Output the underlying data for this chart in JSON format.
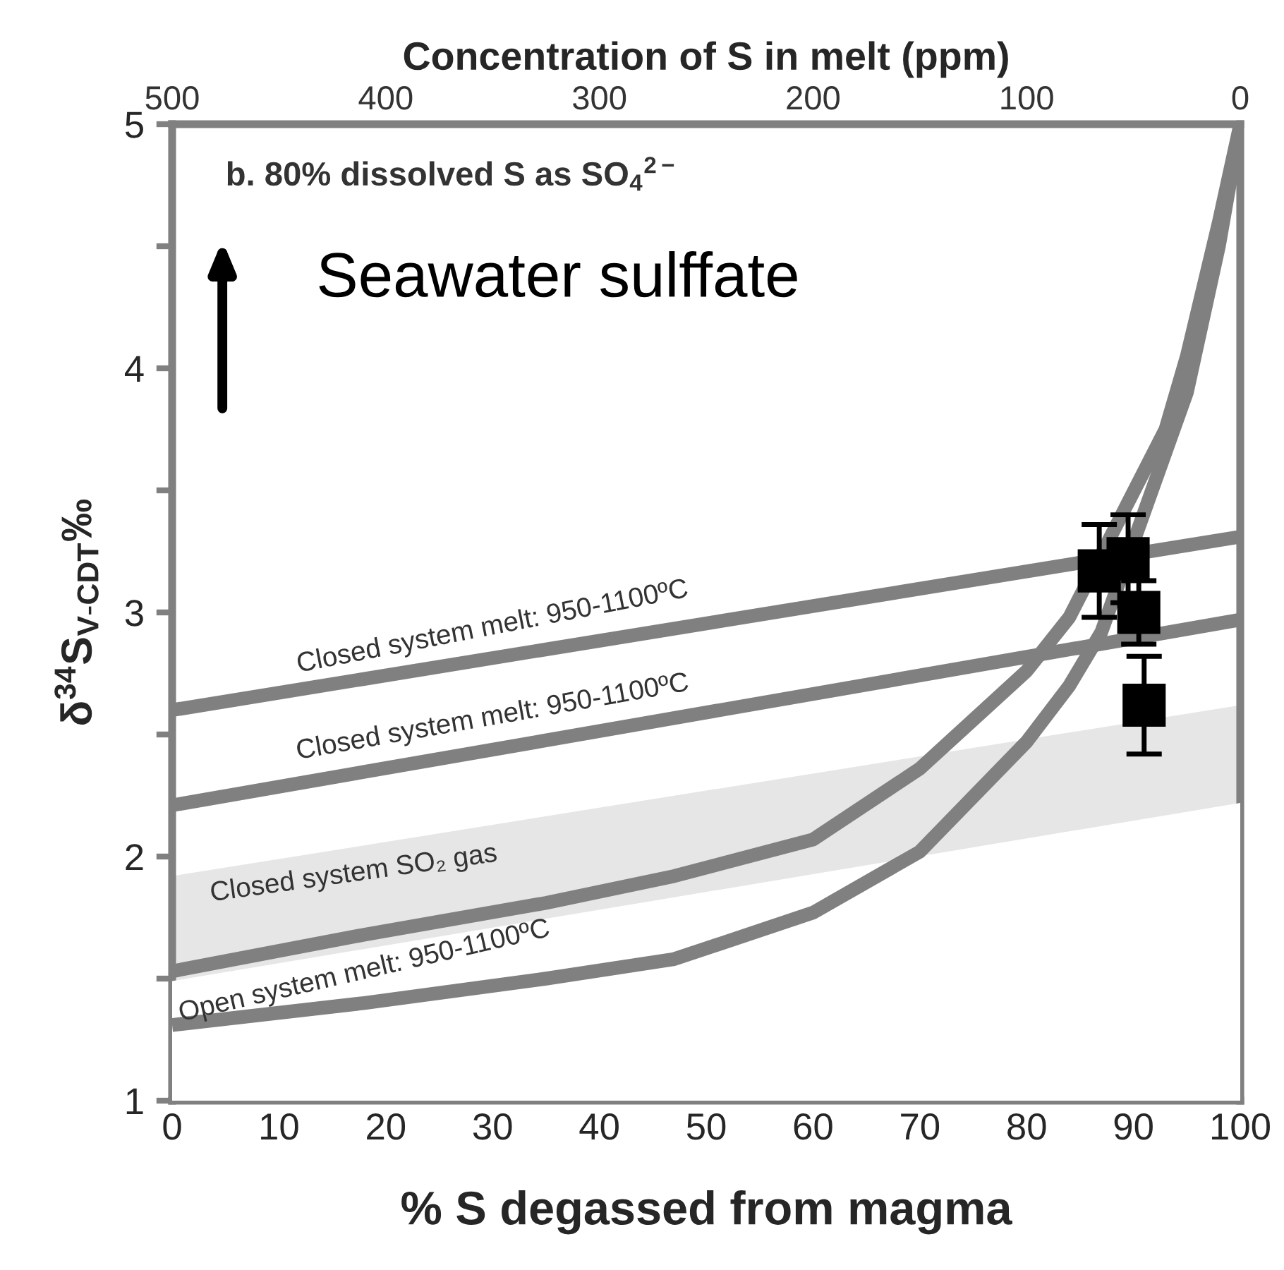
{
  "chart_data": {
    "type": "line",
    "xlabel": "% S degassed from magma",
    "x2label": "Concentration of S in melt (ppm)",
    "ylabel": "δ$^{34}$S$_{V-CDT}$‰",
    "xlim": [
      0,
      100
    ],
    "xticks": [
      0,
      10,
      20,
      30,
      40,
      50,
      60,
      70,
      80,
      90,
      100
    ],
    "x2lim": [
      500,
      0
    ],
    "x2ticks": [
      500,
      400,
      300,
      200,
      100,
      0
    ],
    "ylim": [
      1,
      5
    ],
    "yticks": [
      1,
      {
        "value": 1.5,
        "label": null
      },
      2,
      {
        "value": 2.5,
        "label": null
      },
      3,
      {
        "value": 3.5,
        "label": null
      },
      4,
      {
        "value": 4.5,
        "label": null
      },
      5
    ],
    "grid": false,
    "legend": false,
    "series": [
      {
        "type": "area",
        "color": "#e6e6e6",
        "x": [
          0,
          100
        ],
        "values": [
          1.92,
          2.62
        ]
      },
      {
        "type": "area",
        "color": "#ffffff",
        "x": [
          0,
          100
        ],
        "values": [
          1.49,
          2.22
        ]
      },
      {
        "color": "#808080",
        "x": [
          0,
          100
        ],
        "values": [
          2.6,
          3.31
        ]
      },
      {
        "color": "#808080",
        "x": [
          0,
          100
        ],
        "values": [
          2.21,
          2.97
        ]
      },
      {
        "color": "#808080",
        "x": [
          0,
          18,
          35,
          47,
          60,
          70,
          80,
          84,
          93,
          95,
          98,
          100
        ],
        "values": [
          1.53,
          1.68,
          1.81,
          1.92,
          2.07,
          2.36,
          2.76,
          2.98,
          3.75,
          4.05,
          4.6,
          5
        ]
      },
      {
        "color": "#808080",
        "x": [
          0,
          18,
          35,
          47,
          60,
          70,
          80,
          84,
          87,
          95,
          98,
          100
        ],
        "values": [
          1.31,
          1.4,
          1.5,
          1.58,
          1.77,
          2.02,
          2.47,
          2.7,
          2.92,
          3.9,
          4.5,
          5
        ]
      },
      {
        "type": "scatter",
        "marker": "square",
        "color": "#000000",
        "x": [
          86.8,
          89.5,
          90.5,
          91.0
        ],
        "values": [
          3.17,
          3.22,
          3.0,
          2.62
        ],
        "errors": [
          0.19,
          0.18,
          0.13,
          0.2
        ]
      }
    ],
    "annotations": [
      "b. 80% dissolved S as SO$_{4}$$^{2−}$",
      "Seawater sulffate",
      {
        "text": "Closed system melt: 950-1100ºC",
        "x": 30,
        "y": 2.81
      },
      {
        "text": "Closed system melt: 950-1100ºC",
        "x": 30,
        "y": 2.44
      },
      {
        "text": "Closed system SO₂ gas",
        "x": 17,
        "y": 2.04
      },
      {
        "text": "Open system melt: 950-1100ºC",
        "x": 18,
        "y": 1.4
      }
    ]
  }
}
